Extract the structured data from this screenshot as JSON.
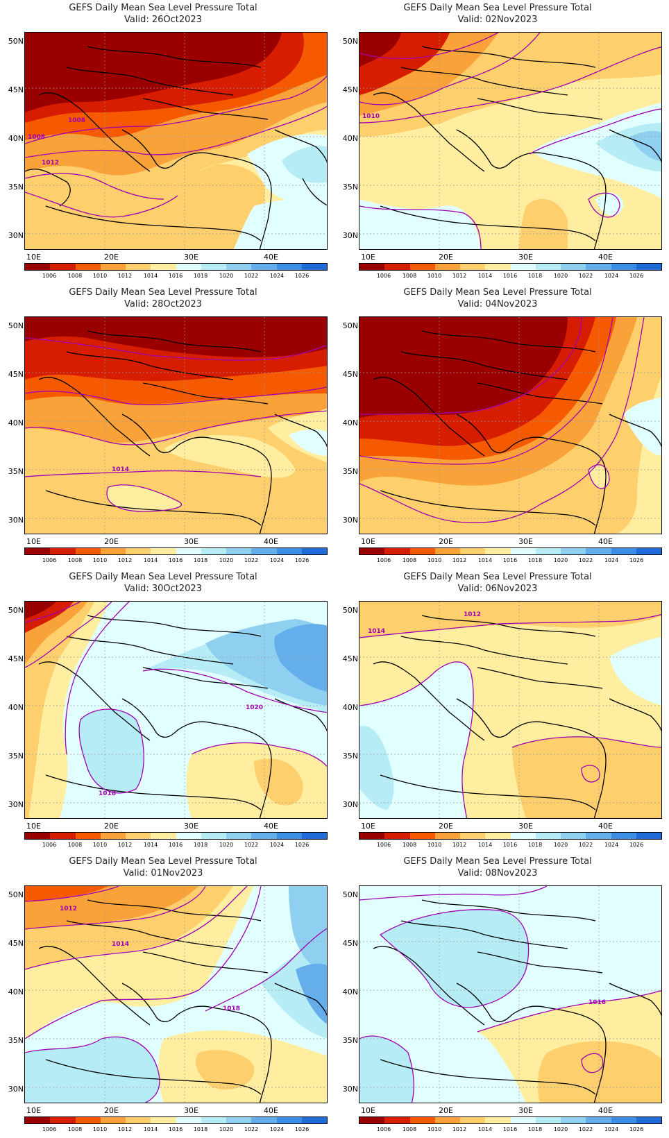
{
  "title": "GEFS Daily Mean Sea Level Pressure Total",
  "valid_prefix": "Valid:",
  "lat_labels": [
    "50N",
    "45N",
    "40N",
    "35N",
    "30N"
  ],
  "lon_labels": [
    "10E",
    "20E",
    "30E",
    "40E"
  ],
  "colorbar": {
    "labels": [
      "1006",
      "1008",
      "1010",
      "1012",
      "1014",
      "1016",
      "1018",
      "1020",
      "1022",
      "1024",
      "1026"
    ],
    "colors": [
      "#9b0000",
      "#d71d00",
      "#f55a00",
      "#f9a23a",
      "#fdcf6d",
      "#ffeea0",
      "#e2ffff",
      "#b6ecf5",
      "#8fd0f0",
      "#64aeeb",
      "#3b8ee6",
      "#1f6cd8"
    ]
  },
  "panels": [
    {
      "id": "p1",
      "valid": "Valid: 26Oct2023",
      "isobar_labels": [
        "1008",
        "1008",
        "1012"
      ]
    },
    {
      "id": "p2",
      "valid": "Valid: 02Nov2023",
      "isobar_labels": [
        "1010"
      ]
    },
    {
      "id": "p3",
      "valid": "Valid: 28Oct2023",
      "isobar_labels": [
        "1014"
      ]
    },
    {
      "id": "p4",
      "valid": "Valid: 04Nov2023",
      "isobar_labels": []
    },
    {
      "id": "p5",
      "valid": "Valid: 30Oct2023",
      "isobar_labels": [
        "1020",
        "1018"
      ]
    },
    {
      "id": "p6",
      "valid": "Valid: 06Nov2023",
      "isobar_labels": [
        "1012",
        "1014"
      ]
    },
    {
      "id": "p7",
      "valid": "Valid: 01Nov2023",
      "isobar_labels": [
        "1012",
        "1014",
        "1018"
      ]
    },
    {
      "id": "p8",
      "valid": "Valid: 08Nov2023",
      "isobar_labels": [
        "1016"
      ]
    }
  ]
}
